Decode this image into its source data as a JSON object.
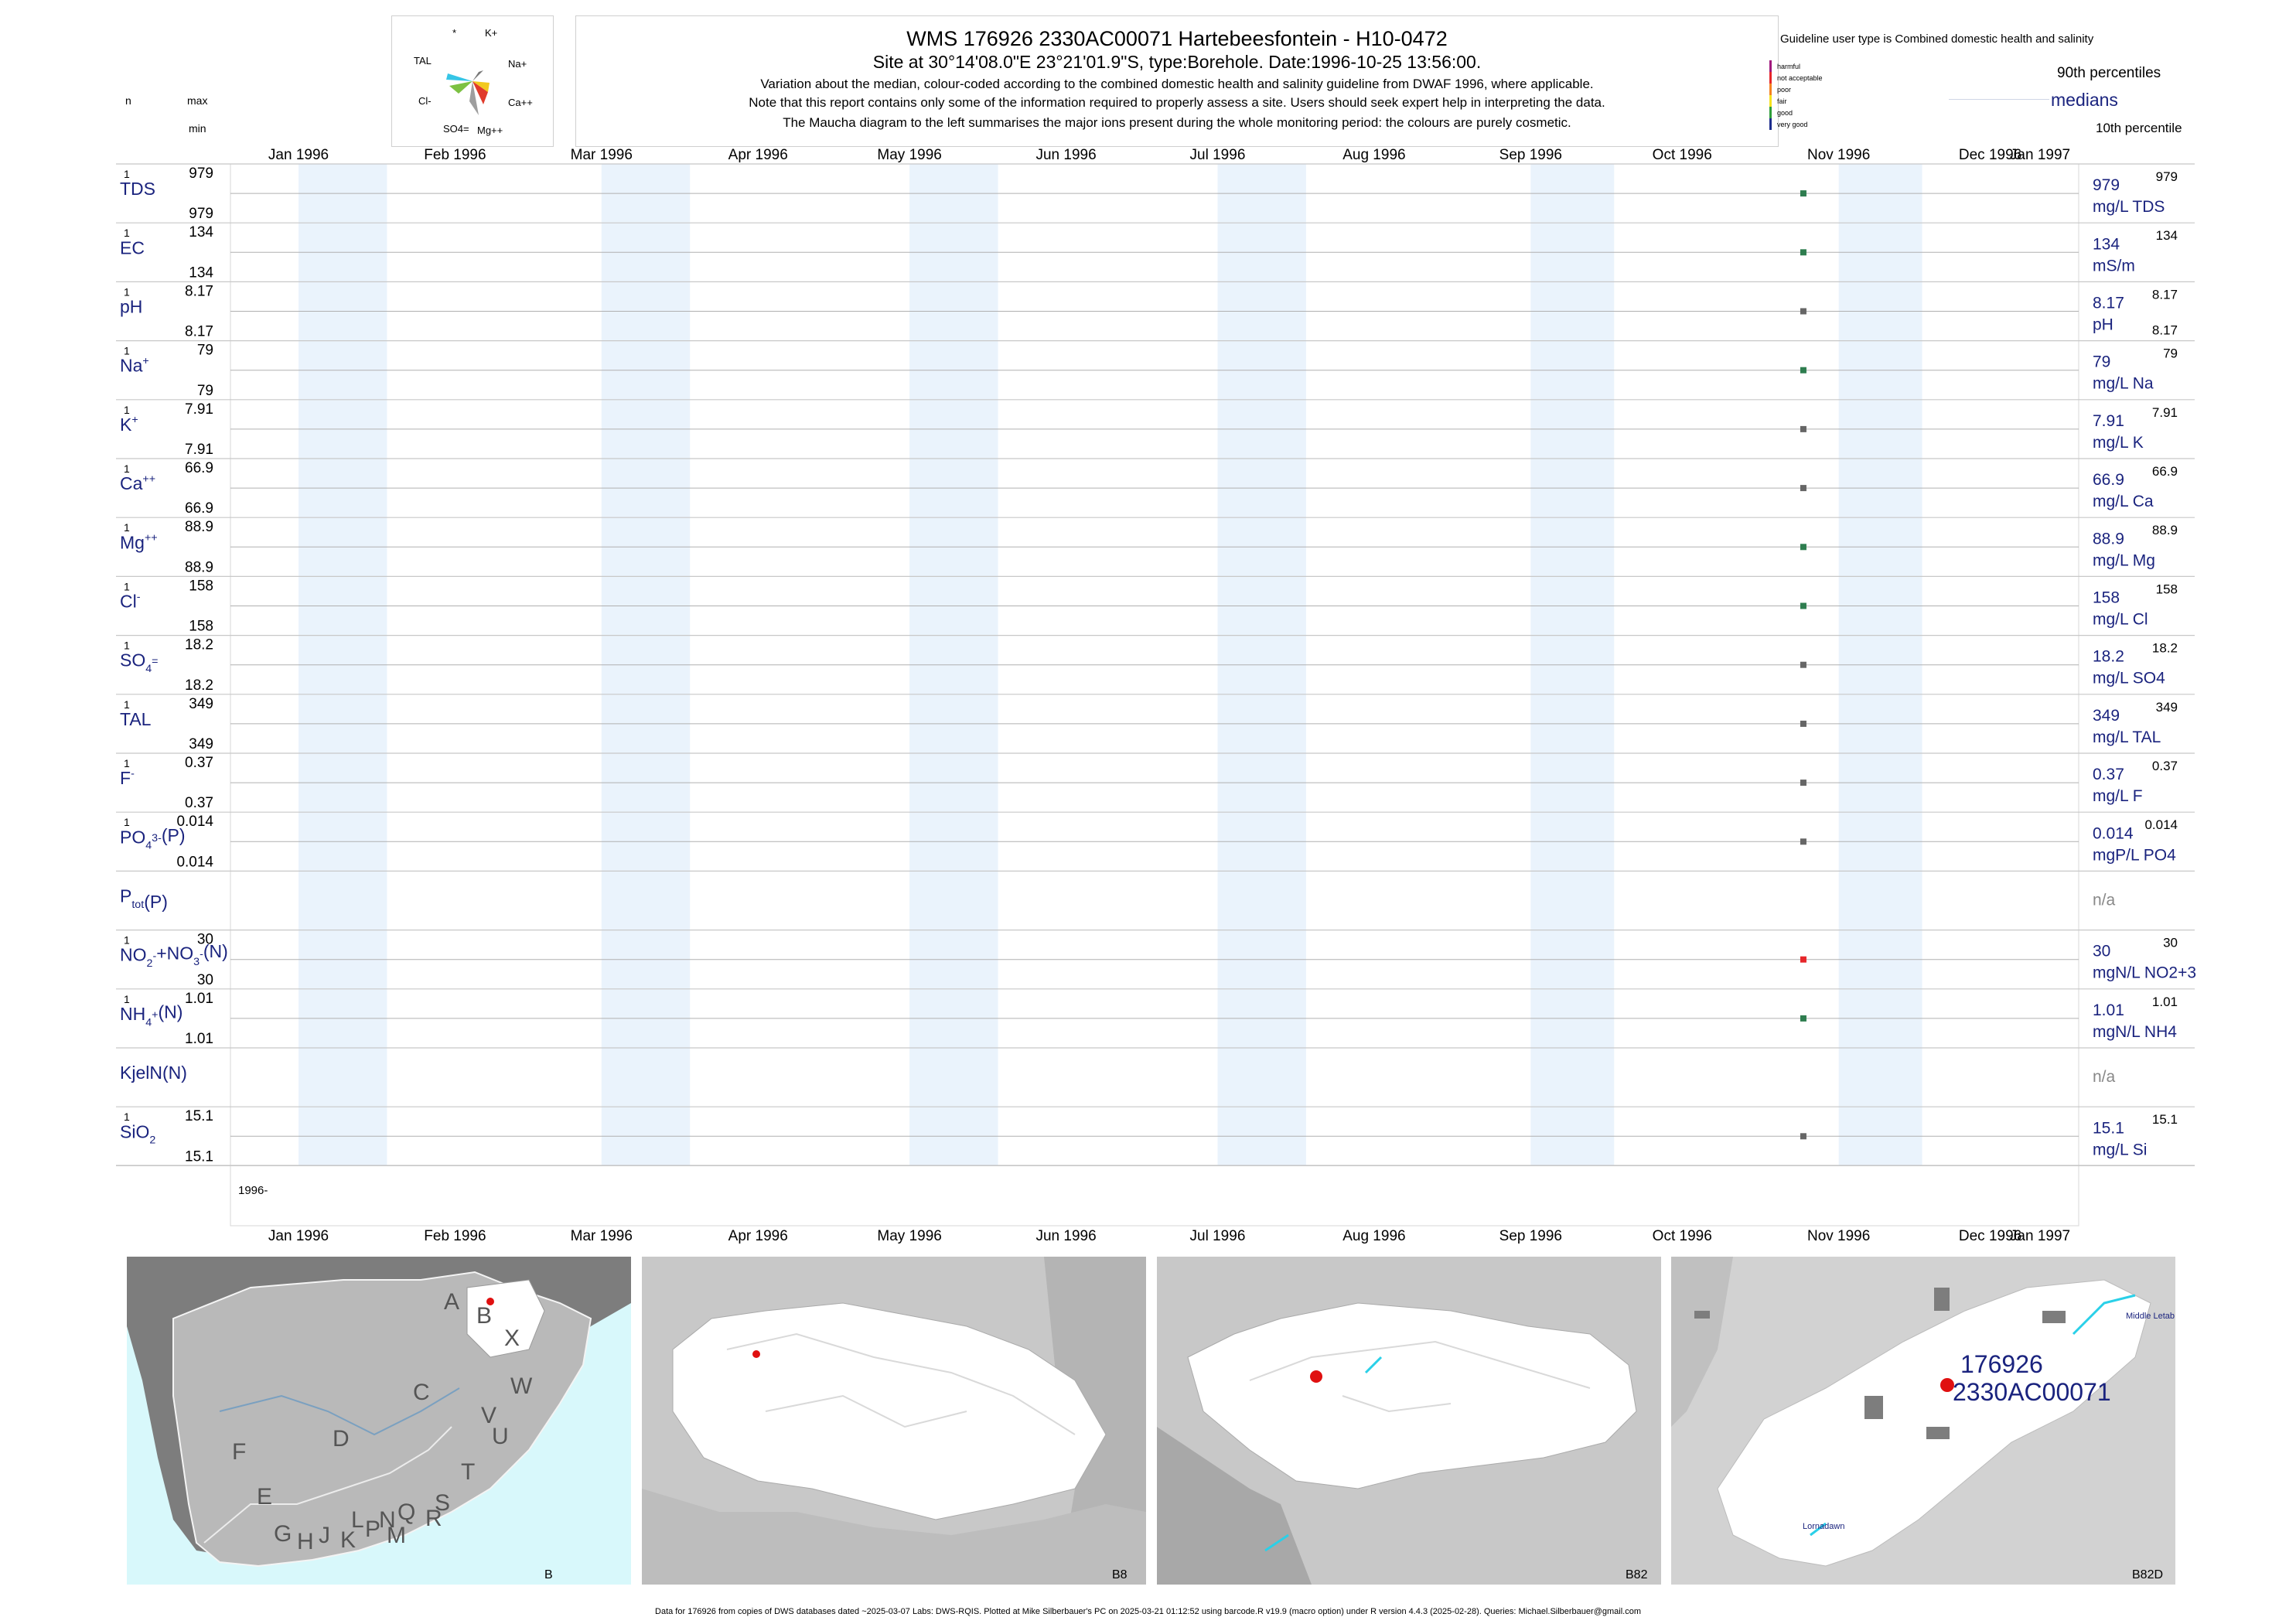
{
  "header": {
    "title": "WMS 176926 2330AC00071 Hartebeesfontein - H10-0472",
    "subtitle": "Site at 30°14'08.0\"E 23°21'01.9\"S, type:Borehole. Date:1996-10-25 13:56:00.",
    "notes": [
      "Variation about the median,  colour-coded according to the combined domestic health and salinity guideline from DWAF 1996, where applicable.",
      "Note that this report contains only some of the information required to properly assess a site. Users should seek expert help in interpreting the data.",
      "The Maucha diagram to the left summarises the major ions present during the whole monitoring period: the colours are purely cosmetic."
    ]
  },
  "column_headers": {
    "n": "n",
    "max": "max",
    "min": "min"
  },
  "maucha": {
    "labels": [
      "*",
      "K+",
      "Na+",
      "Ca++",
      "Mg++",
      "SO4=",
      "Cl-",
      "TAL"
    ]
  },
  "legend": {
    "guideline_title": "Guideline user type is Combined domestic health and salinity",
    "classes": [
      {
        "label": "harmful",
        "color": "#a0197d"
      },
      {
        "label": "not acceptable",
        "color": "#e6262a"
      },
      {
        "label": "poor",
        "color": "#f58220"
      },
      {
        "label": "fair",
        "color": "#f6e21f"
      },
      {
        "label": "good",
        "color": "#2e9e3a"
      },
      {
        "label": "very good",
        "color": "#1c2c8c"
      }
    ],
    "p90": "90th percentiles",
    "medians": "medians",
    "p10": "10th percentile"
  },
  "chart_data": {
    "type": "scatter",
    "x_axis": {
      "ticks": [
        "Jan 1996",
        "Feb 1996",
        "Mar 1996",
        "Apr 1996",
        "May 1996",
        "Jun 1996",
        "Jul 1996",
        "Aug 1996",
        "Sep 1996",
        "Oct 1996",
        "Nov 1996",
        "Dec 1996",
        "Jan 1997"
      ],
      "year_label": "1996-",
      "range": [
        "1996-01-01",
        "1997-01-01"
      ]
    },
    "sample_date": "1996-10-25",
    "rows": [
      {
        "label": "TDS",
        "n": "1",
        "max": "979",
        "min": "979",
        "median": "979",
        "units": "mg/L TDS",
        "p90": "979",
        "p10": "",
        "color": "#2e7d4f"
      },
      {
        "label": "EC",
        "n": "1",
        "max": "134",
        "min": "134",
        "median": "134",
        "units": "mS/m",
        "p90": "134",
        "p10": "",
        "color": "#2e7d4f"
      },
      {
        "label": "pH",
        "n": "1",
        "max": "8.17",
        "min": "8.17",
        "median": "8.17",
        "units": "pH",
        "p90": "8.17",
        "p10": "8.17",
        "color": "#666666"
      },
      {
        "label": "Na+",
        "n": "1",
        "max": "79",
        "min": "79",
        "median": "79",
        "units": "mg/L Na",
        "p90": "79",
        "p10": "",
        "color": "#2e7d4f"
      },
      {
        "label": "K+",
        "n": "1",
        "max": "7.91",
        "min": "7.91",
        "median": "7.91",
        "units": "mg/L K",
        "p90": "7.91",
        "p10": "",
        "color": "#666666"
      },
      {
        "label": "Ca++",
        "n": "1",
        "max": "66.9",
        "min": "66.9",
        "median": "66.9",
        "units": "mg/L Ca",
        "p90": "66.9",
        "p10": "",
        "color": "#666666"
      },
      {
        "label": "Mg++",
        "n": "1",
        "max": "88.9",
        "min": "88.9",
        "median": "88.9",
        "units": "mg/L Mg",
        "p90": "88.9",
        "p10": "",
        "color": "#2e7d4f"
      },
      {
        "label": "Cl-",
        "n": "1",
        "max": "158",
        "min": "158",
        "median": "158",
        "units": "mg/L Cl",
        "p90": "158",
        "p10": "",
        "color": "#2e7d4f"
      },
      {
        "label": "SO4=",
        "n": "1",
        "max": "18.2",
        "min": "18.2",
        "median": "18.2",
        "units": "mg/L SO4",
        "p90": "18.2",
        "p10": "",
        "color": "#666666"
      },
      {
        "label": "TAL",
        "n": "1",
        "max": "349",
        "min": "349",
        "median": "349",
        "units": "mg/L TAL",
        "p90": "349",
        "p10": "",
        "color": "#666666"
      },
      {
        "label": "F-",
        "n": "1",
        "max": "0.37",
        "min": "0.37",
        "median": "0.37",
        "units": "mg/L F",
        "p90": "0.37",
        "p10": "",
        "color": "#666666"
      },
      {
        "label": "PO4(P)",
        "n": "1",
        "max": "0.014",
        "min": "0.014",
        "median": "0.014",
        "units": "mgP/L PO4",
        "p90": "0.014",
        "p10": "",
        "color": "#666666"
      },
      {
        "label": "Ptot(P)",
        "n": "",
        "max": "",
        "min": "",
        "median": "n/a",
        "units": "",
        "p90": "",
        "p10": "",
        "color": ""
      },
      {
        "label": "NO2+NO3(N)",
        "n": "1",
        "max": "30",
        "min": "30",
        "median": "30",
        "units": "mgN/L NO2+3",
        "p90": "30",
        "p10": "",
        "color": "#e6262a"
      },
      {
        "label": "NH4(N)",
        "n": "1",
        "max": "1.01",
        "min": "1.01",
        "median": "1.01",
        "units": "mgN/L NH4",
        "p90": "1.01",
        "p10": "",
        "color": "#2e7d4f"
      },
      {
        "label": "KjelN(N)",
        "n": "",
        "max": "",
        "min": "",
        "median": "n/a",
        "units": "",
        "p90": "",
        "p10": "",
        "color": ""
      },
      {
        "label": "SiO2",
        "n": "1",
        "max": "15.1",
        "min": "15.1",
        "median": "15.1",
        "units": "mg/L Si",
        "p90": "15.1",
        "p10": "",
        "color": "#666666"
      }
    ]
  },
  "maps": {
    "map1": {
      "corner": "B",
      "letters": [
        "A",
        "B",
        "X",
        "W",
        "C",
        "V",
        "U",
        "D",
        "T",
        "F",
        "E",
        "S",
        "R",
        "Q",
        "N",
        "L",
        "M",
        "P",
        "K",
        "J",
        "H",
        "G"
      ]
    },
    "map2": {
      "corner": "B8"
    },
    "map3": {
      "corner": "B82"
    },
    "map4": {
      "corner": "B82D",
      "site_id": "176926",
      "site_code": "2330AC00071",
      "place1": "Middle Letab",
      "place2": "Lornadawn"
    }
  },
  "footer": "Data for 176926 from copies of DWS databases dated ~2025-03-07 Labs: DWS-RQIS. Plotted at Mike Silberbauer's PC on 2025-03-21 01:12:52 using barcode.R v19.9 (macro option) under R version 4.4.3 (2025-02-28). Queries: Michael.Silberbauer@gmail.com"
}
